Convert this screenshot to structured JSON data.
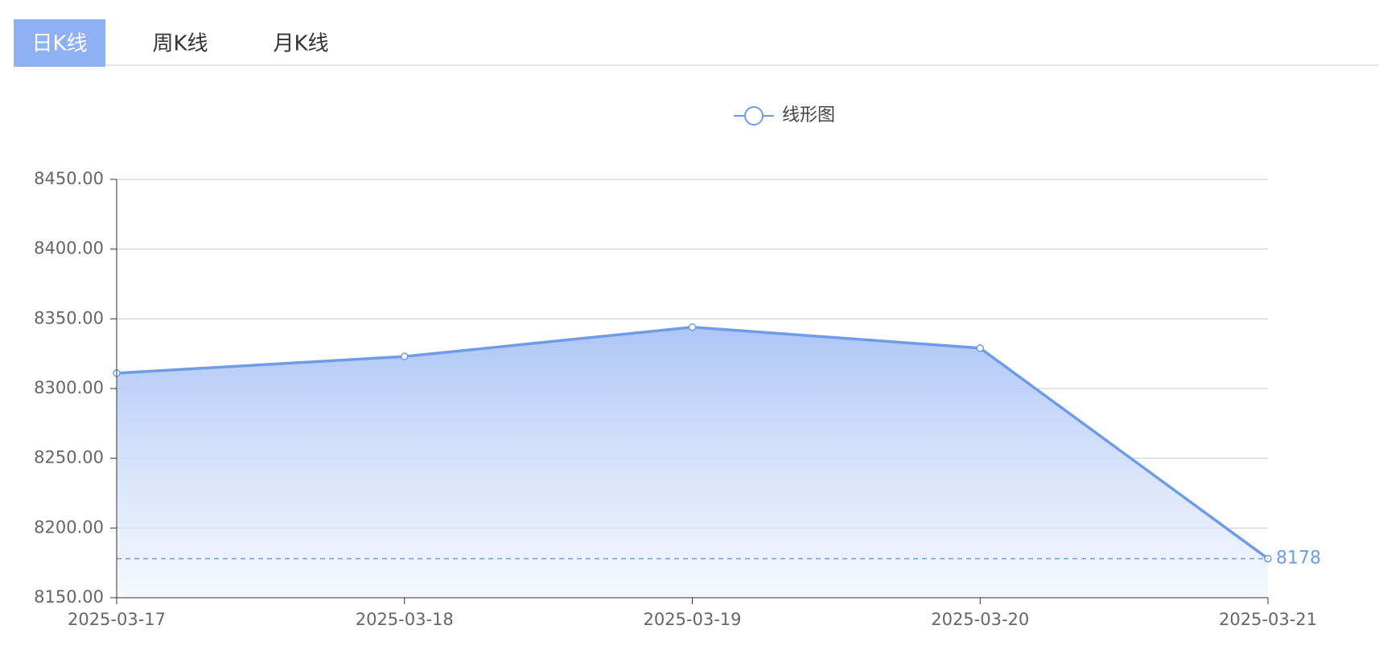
{
  "tabs": [
    "日K线",
    "周K线",
    "月K线"
  ],
  "active_tab": 0,
  "chart_data": {
    "type": "line",
    "categories": [
      "2025-03-17",
      "2025-03-18",
      "2025-03-19",
      "2025-03-20",
      "2025-03-21"
    ],
    "series": [
      {
        "name": "线形图",
        "color": "#6f9ce8",
        "values": [
          8311,
          8323,
          8344,
          8329,
          8178
        ]
      }
    ],
    "ylim": [
      8150,
      8450
    ],
    "yticks": [
      {
        "value": 8150,
        "label": "8150.00"
      },
      {
        "value": 8200,
        "label": "8200.00"
      },
      {
        "value": 8250,
        "label": "8250.00"
      },
      {
        "value": 8300,
        "label": "8300.00"
      },
      {
        "value": 8350,
        "label": "8350.00"
      },
      {
        "value": 8400,
        "label": "8400.00"
      },
      {
        "value": 8450,
        "label": "8450.00"
      }
    ],
    "grid": true,
    "mark_line": {
      "value": 8178
    }
  }
}
